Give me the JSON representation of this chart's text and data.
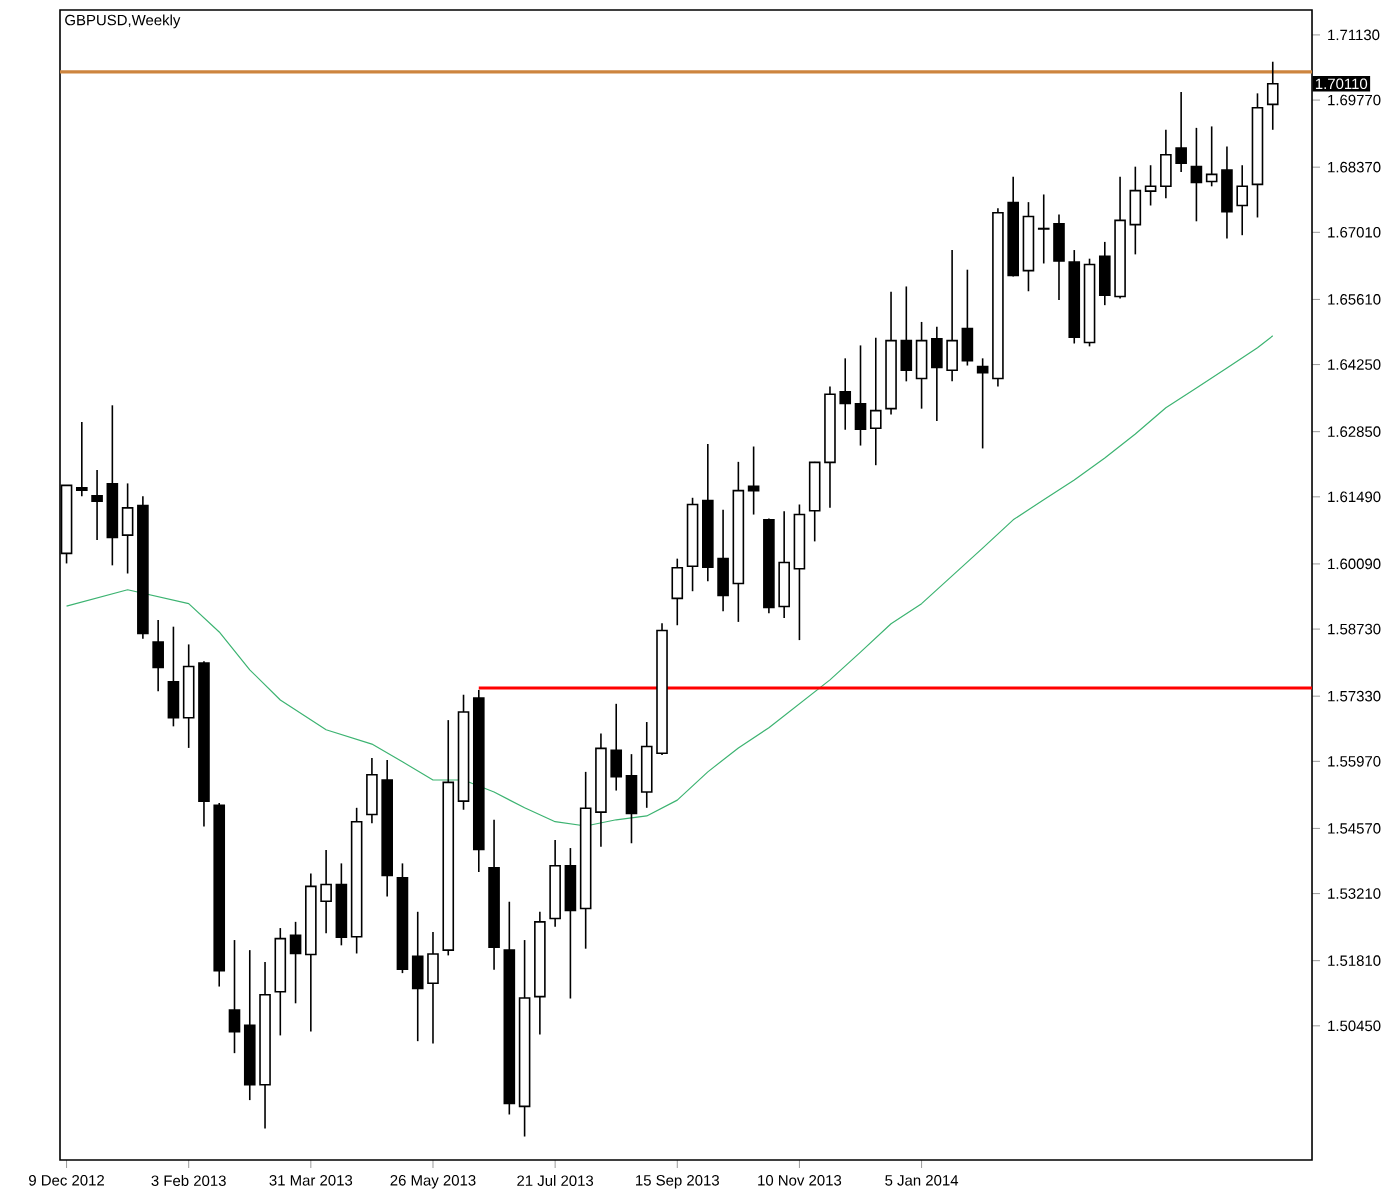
{
  "chart_data": {
    "type": "candlestick",
    "title": "GBPUSD,Weekly",
    "x": [
      "2012-12-09",
      "2012-12-16",
      "2012-12-23",
      "2012-12-30",
      "2013-01-06",
      "2013-01-13",
      "2013-01-20",
      "2013-01-27",
      "2013-02-03",
      "2013-02-10",
      "2013-02-17",
      "2013-02-24",
      "2013-03-03",
      "2013-03-10",
      "2013-03-17",
      "2013-03-24",
      "2013-03-31",
      "2013-04-07",
      "2013-04-14",
      "2013-04-21",
      "2013-04-28",
      "2013-05-05",
      "2013-05-12",
      "2013-05-19",
      "2013-05-26",
      "2013-06-02",
      "2013-06-09",
      "2013-06-16",
      "2013-06-23",
      "2013-06-30",
      "2013-07-07",
      "2013-07-14",
      "2013-07-21",
      "2013-07-28",
      "2013-08-04",
      "2013-08-11",
      "2013-08-18",
      "2013-08-25",
      "2013-09-01",
      "2013-09-08",
      "2013-09-15",
      "2013-09-22",
      "2013-09-29",
      "2013-10-06",
      "2013-10-13",
      "2013-10-20",
      "2013-10-27",
      "2013-11-03",
      "2013-11-10",
      "2013-11-17",
      "2013-11-24",
      "2013-12-01",
      "2013-12-08",
      "2013-12-15",
      "2013-12-22",
      "2013-12-29",
      "2014-01-05",
      "2014-01-12",
      "2014-01-19",
      "2014-01-26",
      "2014-02-02",
      "2014-02-09",
      "2014-02-16",
      "2014-02-23",
      "2014-03-02",
      "2014-03-09",
      "2014-03-16",
      "2014-03-23",
      "2014-03-30",
      "2014-04-06",
      "2014-04-13",
      "2014-04-20",
      "2014-04-27",
      "2014-05-04",
      "2014-05-11",
      "2014-05-18",
      "2014-05-25",
      "2014-06-01",
      "2014-06-08",
      "2014-06-15"
    ],
    "ohlc": [
      [
        1.6031,
        1.6173,
        1.601,
        1.6173
      ],
      [
        1.6168,
        1.6305,
        1.615,
        1.6163
      ],
      [
        1.6151,
        1.6205,
        1.6059,
        1.614
      ],
      [
        1.6176,
        1.634,
        1.6006,
        1.6064
      ],
      [
        1.6069,
        1.6177,
        1.5989,
        1.6126
      ],
      [
        1.6131,
        1.615,
        1.5853,
        1.5864
      ],
      [
        1.5846,
        1.5892,
        1.5743,
        1.5793
      ],
      [
        1.5763,
        1.5878,
        1.567,
        1.5688
      ],
      [
        1.5688,
        1.5841,
        1.5625,
        1.5795
      ],
      [
        1.5802,
        1.5806,
        1.5461,
        1.5514
      ],
      [
        1.5505,
        1.551,
        1.5127,
        1.516
      ],
      [
        1.5078,
        1.5224,
        1.4988,
        1.5033
      ],
      [
        1.5046,
        1.5203,
        1.489,
        1.4922
      ],
      [
        1.4922,
        1.5178,
        1.4831,
        1.511
      ],
      [
        1.5116,
        1.5249,
        1.5025,
        1.5227
      ],
      [
        1.5234,
        1.5262,
        1.5092,
        1.5196
      ],
      [
        1.5194,
        1.5363,
        1.5033,
        1.5336
      ],
      [
        1.5305,
        1.5412,
        1.5238,
        1.534
      ],
      [
        1.534,
        1.5384,
        1.5213,
        1.523
      ],
      [
        1.5231,
        1.55,
        1.5196,
        1.5471
      ],
      [
        1.5486,
        1.5604,
        1.5468,
        1.5569
      ],
      [
        1.5558,
        1.56,
        1.5315,
        1.5359
      ],
      [
        1.5354,
        1.5384,
        1.5155,
        1.5163
      ],
      [
        1.519,
        1.5283,
        1.5013,
        1.5123
      ],
      [
        1.5134,
        1.5241,
        1.5008,
        1.5195
      ],
      [
        1.5203,
        1.5683,
        1.5192,
        1.5553
      ],
      [
        1.5514,
        1.5736,
        1.5496,
        1.57
      ],
      [
        1.5729,
        1.5746,
        1.5366,
        1.5413
      ],
      [
        1.5375,
        1.5475,
        1.5162,
        1.5209
      ],
      [
        1.5203,
        1.5304,
        1.486,
        1.4883
      ],
      [
        1.4877,
        1.5224,
        1.4814,
        1.5103
      ],
      [
        1.5106,
        1.5283,
        1.5027,
        1.5262
      ],
      [
        1.5269,
        1.5433,
        1.5252,
        1.5379
      ],
      [
        1.5379,
        1.5416,
        1.5102,
        1.5286
      ],
      [
        1.529,
        1.5575,
        1.5206,
        1.5499
      ],
      [
        1.5491,
        1.5655,
        1.5419,
        1.5624
      ],
      [
        1.562,
        1.5717,
        1.5536,
        1.5565
      ],
      [
        1.5567,
        1.5612,
        1.5426,
        1.5488
      ],
      [
        1.5533,
        1.5679,
        1.55,
        1.5628
      ],
      [
        1.5614,
        1.5885,
        1.561,
        1.587
      ],
      [
        1.5937,
        1.602,
        1.5881,
        1.6001
      ],
      [
        1.6004,
        1.6147,
        1.5952,
        1.6133
      ],
      [
        1.6141,
        1.6259,
        1.5973,
        1.6002
      ],
      [
        1.602,
        1.6122,
        1.591,
        1.5943
      ],
      [
        1.5968,
        1.6222,
        1.5888,
        1.6162
      ],
      [
        1.6171,
        1.6254,
        1.6112,
        1.6162
      ],
      [
        1.6101,
        1.6104,
        1.5906,
        1.5918
      ],
      [
        1.592,
        1.6119,
        1.5896,
        1.6012
      ],
      [
        1.5999,
        1.6133,
        1.585,
        1.6112
      ],
      [
        1.612,
        1.6222,
        1.6056,
        1.6221
      ],
      [
        1.6221,
        1.6379,
        1.6126,
        1.6363
      ],
      [
        1.6368,
        1.6438,
        1.6289,
        1.6344
      ],
      [
        1.6343,
        1.6465,
        1.6256,
        1.629
      ],
      [
        1.6292,
        1.6481,
        1.6215,
        1.6329
      ],
      [
        1.6333,
        1.6577,
        1.6321,
        1.6475
      ],
      [
        1.6475,
        1.6588,
        1.639,
        1.6413
      ],
      [
        1.6396,
        1.6514,
        1.6333,
        1.6475
      ],
      [
        1.6479,
        1.6504,
        1.6307,
        1.6419
      ],
      [
        1.6413,
        1.6664,
        1.639,
        1.6475
      ],
      [
        1.65,
        1.6623,
        1.6423,
        1.6433
      ],
      [
        1.6421,
        1.6438,
        1.625,
        1.6408
      ],
      [
        1.6396,
        1.6751,
        1.6379,
        1.6742
      ],
      [
        1.6763,
        1.6817,
        1.6609,
        1.6611
      ],
      [
        1.6621,
        1.6764,
        1.6578,
        1.6734
      ],
      [
        1.6709,
        1.678,
        1.6636,
        1.6708
      ],
      [
        1.6719,
        1.6738,
        1.656,
        1.6641
      ],
      [
        1.6639,
        1.6664,
        1.6469,
        1.6482
      ],
      [
        1.6471,
        1.6646,
        1.6463,
        1.6634
      ],
      [
        1.6651,
        1.6681,
        1.6549,
        1.657
      ],
      [
        1.6567,
        1.6817,
        1.6563,
        1.6726
      ],
      [
        1.6717,
        1.6838,
        1.6655,
        1.6788
      ],
      [
        1.6787,
        1.6841,
        1.6757,
        1.6797
      ],
      [
        1.6797,
        1.6915,
        1.6772,
        1.6863
      ],
      [
        1.6877,
        1.6994,
        1.6827,
        1.6845
      ],
      [
        1.6838,
        1.6919,
        1.6724,
        1.6805
      ],
      [
        1.6807,
        1.6922,
        1.6797,
        1.6822
      ],
      [
        1.6831,
        1.688,
        1.6688,
        1.6744
      ],
      [
        1.6757,
        1.6841,
        1.6695,
        1.6797
      ],
      [
        1.6801,
        1.6991,
        1.6732,
        1.6961
      ],
      [
        1.6968,
        1.7057,
        1.6915,
        1.7011
      ]
    ],
    "series": [
      {
        "type": "line",
        "color": "#3cb371",
        "x": [
          "2012-12-09",
          "2013-01-06",
          "2013-02-03",
          "2013-02-17",
          "2013-03-03",
          "2013-03-17",
          "2013-04-07",
          "2013-04-28",
          "2013-05-12",
          "2013-05-26",
          "2013-06-09",
          "2013-06-23",
          "2013-07-07",
          "2013-07-21",
          "2013-08-04",
          "2013-08-18",
          "2013-09-01",
          "2013-09-15",
          "2013-09-29",
          "2013-10-13",
          "2013-10-27",
          "2013-11-10",
          "2013-11-24",
          "2013-12-08",
          "2013-12-22",
          "2014-01-05",
          "2014-01-19",
          "2014-02-02",
          "2014-02-16",
          "2014-03-02",
          "2014-03-16",
          "2014-03-30",
          "2014-04-13",
          "2014-04-27",
          "2014-05-11",
          "2014-05-25",
          "2014-06-08",
          "2014-06-15"
        ],
        "values": [
          1.5921,
          1.5955,
          1.5926,
          1.5867,
          1.5788,
          1.5725,
          1.5663,
          1.5633,
          1.5596,
          1.5558,
          1.5558,
          1.5533,
          1.55,
          1.5471,
          1.5462,
          1.5475,
          1.5483,
          1.5516,
          1.5575,
          1.5625,
          1.5667,
          1.5717,
          1.5767,
          1.5825,
          1.5884,
          1.5926,
          1.5984,
          1.6042,
          1.6101,
          1.6143,
          1.6184,
          1.623,
          1.628,
          1.6335,
          1.6376,
          1.6418,
          1.646,
          1.6485
        ]
      },
      {
        "type": "line",
        "color": "#ff0000",
        "x": [
          "2013-06-16",
          "2014-07-03"
        ],
        "values": [
          1.575,
          1.575
        ]
      }
    ],
    "ref_lines": [
      {
        "axis": "y",
        "value": 1.7036,
        "color": "#cd853f"
      }
    ],
    "annotations": [
      "1.70110"
    ],
    "xlim": [
      "2012-12-06",
      "2014-07-03"
    ],
    "ylim": [
      1.4765,
      1.7165
    ],
    "xticks": [
      {
        "value": "2012-12-09",
        "label": "9 Dec 2012"
      },
      {
        "value": "2013-02-03",
        "label": "3 Feb 2013"
      },
      {
        "value": "2013-03-31",
        "label": "31 Mar 2013"
      },
      {
        "value": "2013-05-26",
        "label": "26 May 2013"
      },
      {
        "value": "2013-07-21",
        "label": "21 Jul 2013"
      },
      {
        "value": "2013-09-15",
        "label": "15 Sep 2013"
      },
      {
        "value": "2013-11-10",
        "label": "10 Nov 2013"
      },
      {
        "value": "2014-01-05",
        "label": "5 Jan 2014"
      }
    ],
    "yticks": [
      {
        "value": 1.7113,
        "label": "1.71130"
      },
      {
        "value": 1.6977,
        "label": "1.69770"
      },
      {
        "value": 1.6837,
        "label": "1.68370"
      },
      {
        "value": 1.6701,
        "label": "1.67010"
      },
      {
        "value": 1.6561,
        "label": "1.65610"
      },
      {
        "value": 1.6425,
        "label": "1.64250"
      },
      {
        "value": 1.6285,
        "label": "1.62850"
      },
      {
        "value": 1.6149,
        "label": "1.61490"
      },
      {
        "value": 1.6009,
        "label": "1.60090"
      },
      {
        "value": 1.5873,
        "label": "1.58730"
      },
      {
        "value": 1.5733,
        "label": "1.57330"
      },
      {
        "value": 1.5597,
        "label": "1.55970"
      },
      {
        "value": 1.5457,
        "label": "1.54570"
      },
      {
        "value": 1.5321,
        "label": "1.53210"
      },
      {
        "value": 1.5181,
        "label": "1.51810"
      },
      {
        "value": 1.5045,
        "label": "1.50450"
      }
    ]
  }
}
